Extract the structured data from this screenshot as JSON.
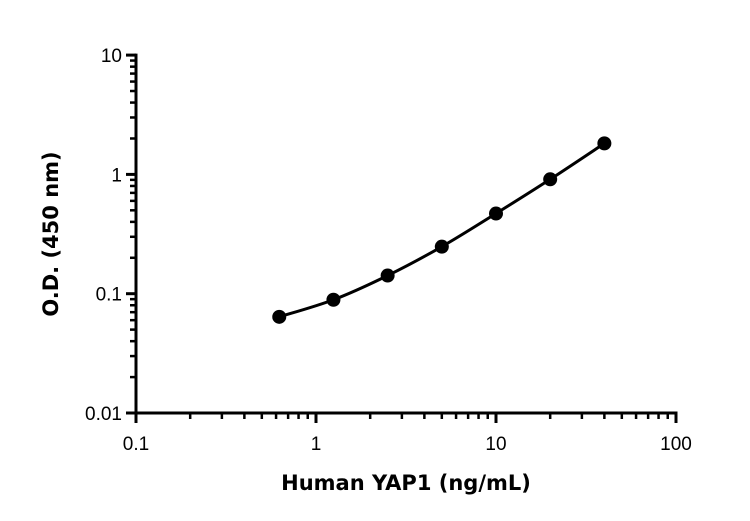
{
  "chart_data": {
    "type": "line",
    "title": "",
    "xlabel": "Human YAP1 (ng/mL)",
    "ylabel": "O.D. (450 nm)",
    "x_scale": "log",
    "y_scale": "log",
    "xlim": [
      0.1,
      100
    ],
    "ylim": [
      0.01,
      10
    ],
    "x_ticks": [
      "0.1",
      "1",
      "10",
      "100"
    ],
    "y_ticks": [
      "0.01",
      "0.1",
      "1",
      "10"
    ],
    "grid": false,
    "series": [
      {
        "x": [
          0.625,
          1.25,
          2.5,
          5,
          10,
          20,
          40
        ],
        "y": [
          0.064,
          0.089,
          0.142,
          0.248,
          0.47,
          0.91,
          1.82
        ],
        "color": "#000000",
        "marker": "circle",
        "fit_curve": true
      }
    ]
  }
}
